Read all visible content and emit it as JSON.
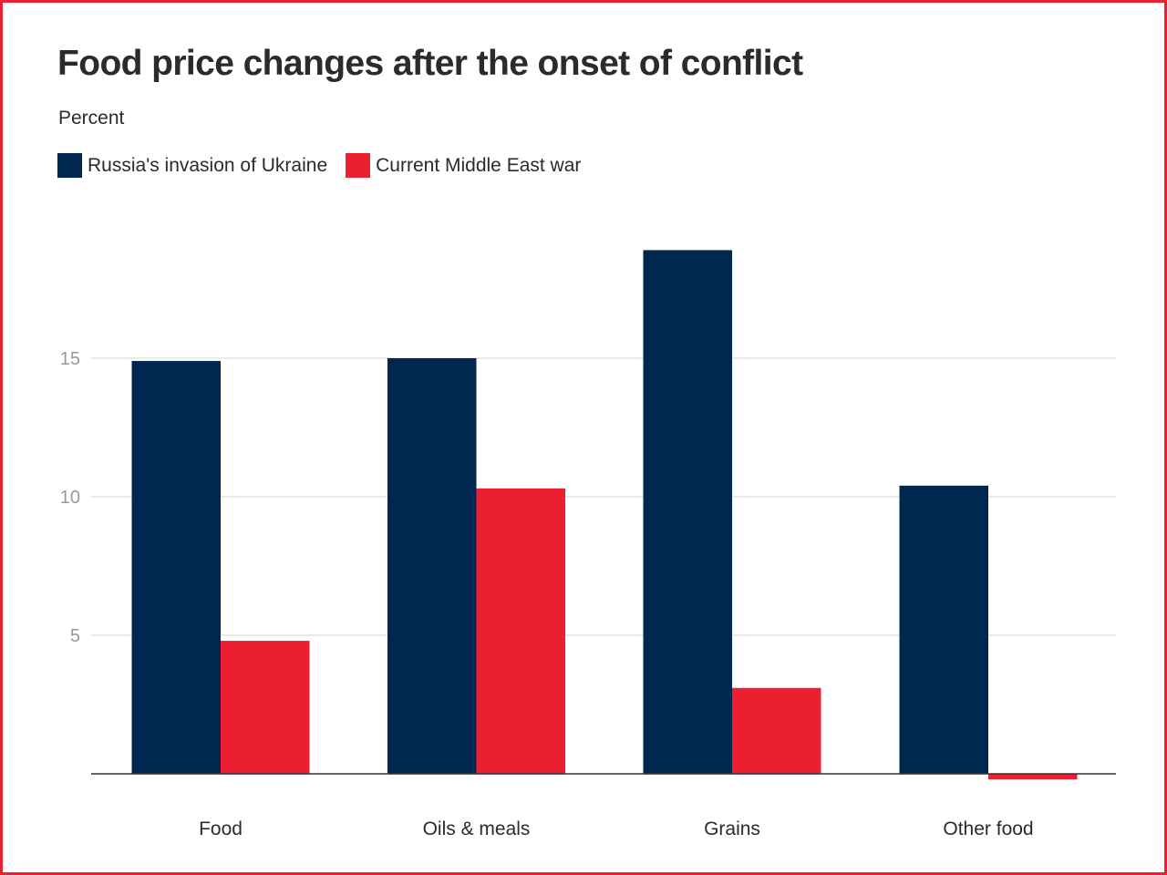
{
  "chart_data": {
    "type": "bar",
    "title": "Food price changes after the onset of conflict",
    "subtitle": "Percent",
    "categories": [
      "Food",
      "Oils & meals",
      "Grains",
      "Other food"
    ],
    "series": [
      {
        "name": "Russia's invasion of Ukraine",
        "color": "#00274f",
        "values": [
          14.9,
          15.0,
          18.9,
          10.4
        ]
      },
      {
        "name": "Current Middle East war",
        "color": "#eb1f2f",
        "values": [
          4.8,
          10.3,
          3.1,
          -0.2
        ]
      }
    ],
    "yticks": [
      5,
      10,
      15
    ],
    "ylim": [
      -0.5,
      20
    ],
    "grid": true,
    "legend_position": "top-left"
  }
}
